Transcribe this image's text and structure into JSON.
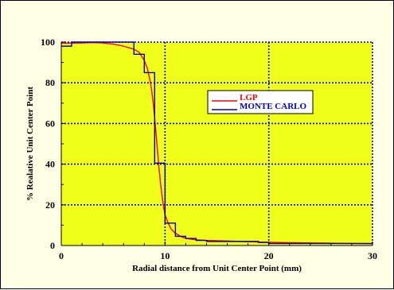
{
  "chart_data": {
    "type": "line",
    "title": "",
    "xlabel": "Radial distance from Unit Center Point (mm)",
    "ylabel": "% Realative Unit Center Point",
    "xlim": [
      0,
      30
    ],
    "ylim": [
      0,
      100
    ],
    "x_ticks": [
      0,
      10,
      20,
      30
    ],
    "y_ticks": [
      0,
      20,
      40,
      60,
      80,
      100
    ],
    "grid": true,
    "legend_position": "top-right",
    "colors": {
      "plot_background": "#f0ff1a",
      "page_background": "#ffffe6",
      "grid": "#0000cc",
      "lgp": "#ff0000",
      "monte_carlo": "#0000cc"
    },
    "series": [
      {
        "name": "LGP",
        "style": "smooth",
        "color": "#ff0000",
        "x": [
          0,
          1,
          2,
          3,
          4,
          5,
          6,
          7,
          7.5,
          8,
          8.3,
          8.6,
          8.8,
          9.0,
          9.2,
          9.4,
          9.6,
          9.8,
          10,
          10.3,
          10.6,
          11,
          11.5,
          12,
          13,
          14,
          16,
          18,
          20,
          22,
          25,
          28,
          30
        ],
        "y": [
          99.5,
          99.5,
          99.6,
          99.8,
          99.6,
          99,
          98,
          96.5,
          95,
          91,
          87,
          80,
          73,
          63,
          51,
          39,
          29,
          21,
          15,
          11,
          8,
          6,
          4.5,
          3.5,
          2.8,
          2.5,
          2.2,
          1.9,
          1.6,
          1.4,
          1.2,
          1.0,
          0.9
        ]
      },
      {
        "name": "MONTE CARLO",
        "style": "step",
        "color": "#0000cc",
        "bins": [
          0,
          1,
          7,
          8,
          9,
          10,
          11,
          12,
          13,
          14,
          19,
          20,
          30
        ],
        "values": [
          98,
          100,
          94,
          85,
          40.5,
          11,
          4.5,
          3.5,
          2.5,
          2,
          1.5,
          1
        ]
      }
    ]
  }
}
